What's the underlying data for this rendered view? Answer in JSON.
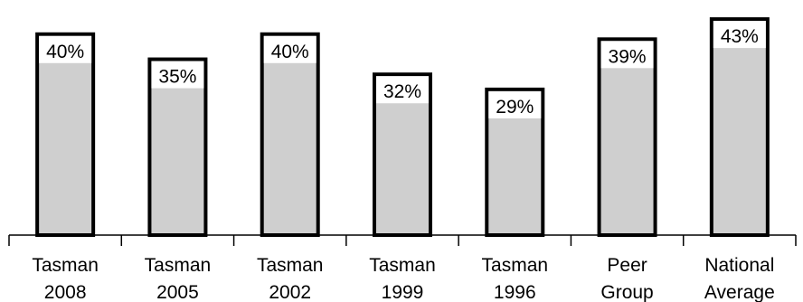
{
  "chart_data": {
    "type": "bar",
    "categories": [
      [
        "Tasman",
        "2008"
      ],
      [
        "Tasman",
        "2005"
      ],
      [
        "Tasman",
        "2002"
      ],
      [
        "Tasman",
        "1999"
      ],
      [
        "Tasman",
        "1996"
      ],
      [
        "Peer",
        "Group"
      ],
      [
        "National",
        "Average"
      ]
    ],
    "values": [
      40,
      35,
      40,
      32,
      29,
      39,
      43
    ],
    "value_labels": [
      "40%",
      "35%",
      "40%",
      "32%",
      "29%",
      "39%",
      "43%"
    ],
    "ylim": [
      0,
      45
    ],
    "grid": false,
    "colors": {
      "bar_fill": "#cfcfcf",
      "bar_stroke": "#000000",
      "label_bg": "#ffffff"
    }
  }
}
